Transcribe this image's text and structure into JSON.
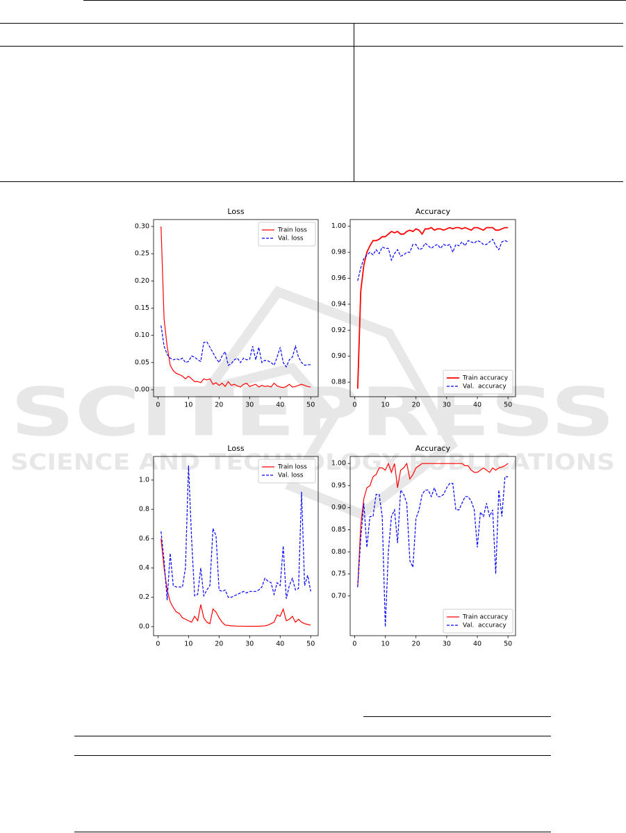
{
  "watermark": {
    "title": "SCITEPRESS",
    "subtitle": "SCIENCE AND TECHNOLOGY PUBLICATIONS"
  },
  "chart_data": [
    {
      "type": "line",
      "title": "Loss",
      "x": [
        1,
        2,
        3,
        4,
        5,
        6,
        7,
        8,
        9,
        10,
        11,
        12,
        13,
        14,
        15,
        16,
        17,
        18,
        19,
        20,
        21,
        22,
        23,
        24,
        25,
        26,
        27,
        28,
        29,
        30,
        31,
        32,
        33,
        34,
        35,
        36,
        37,
        38,
        39,
        40,
        41,
        42,
        43,
        44,
        45,
        46,
        47,
        48,
        49,
        50
      ],
      "xlim": [
        -1.45,
        52.45
      ],
      "xticks": [
        0,
        10,
        20,
        30,
        40,
        50
      ],
      "ylim": [
        -0.0128,
        0.3128
      ],
      "yticks": [
        {
          "value": 0,
          "label": "0.00"
        },
        {
          "value": 0.05,
          "label": "0.05"
        },
        {
          "value": 0.1,
          "label": "0.10"
        },
        {
          "value": 0.15,
          "label": "0.15"
        },
        {
          "value": 0.2,
          "label": "0.20"
        },
        {
          "value": 0.25,
          "label": "0.25"
        },
        {
          "value": 0.3,
          "label": "0.30"
        }
      ],
      "grid": false,
      "legend": "upper-right",
      "series": [
        {
          "name": "Train loss",
          "color": "#ff0000",
          "linestyle": "solid",
          "linewidth": 1.2,
          "values": [
            0.3,
            0.13,
            0.08,
            0.045,
            0.035,
            0.03,
            0.028,
            0.025,
            0.02,
            0.025,
            0.02,
            0.015,
            0.015,
            0.013,
            0.02,
            0.018,
            0.02,
            0.01,
            0.013,
            0.008,
            0.012,
            0.006,
            0.015,
            0.008,
            0.01,
            0.007,
            0.005,
            0.01,
            0.012,
            0.006,
            0.008,
            0.01,
            0.005,
            0.008,
            0.006,
            0.007,
            0.005,
            0.012,
            0.007,
            0.005,
            0.004,
            0.006,
            0.01,
            0.005,
            0.006,
            0.008,
            0.01,
            0.008,
            0.006,
            0.005
          ]
        },
        {
          "name": "Val. loss",
          "color": "#0000ff",
          "linestyle": "dashed",
          "linewidth": 1.2,
          "values": [
            0.118,
            0.08,
            0.065,
            0.058,
            0.055,
            0.057,
            0.055,
            0.058,
            0.05,
            0.052,
            0.062,
            0.06,
            0.055,
            0.052,
            0.087,
            0.088,
            0.078,
            0.068,
            0.058,
            0.05,
            0.062,
            0.07,
            0.045,
            0.048,
            0.055,
            0.058,
            0.05,
            0.058,
            0.055,
            0.056,
            0.08,
            0.055,
            0.078,
            0.05,
            0.054,
            0.053,
            0.05,
            0.045,
            0.06,
            0.078,
            0.05,
            0.042,
            0.055,
            0.06,
            0.08,
            0.06,
            0.05,
            0.045,
            0.046,
            0.046
          ]
        }
      ]
    },
    {
      "type": "line",
      "title": "Accuracy",
      "x": [
        1,
        2,
        3,
        4,
        5,
        6,
        7,
        8,
        9,
        10,
        11,
        12,
        13,
        14,
        15,
        16,
        17,
        18,
        19,
        20,
        21,
        22,
        23,
        24,
        25,
        26,
        27,
        28,
        29,
        30,
        31,
        32,
        33,
        34,
        35,
        36,
        37,
        38,
        39,
        40,
        41,
        42,
        43,
        44,
        45,
        46,
        47,
        48,
        49,
        50
      ],
      "xlim": [
        -1.45,
        52.45
      ],
      "xticks": [
        0,
        10,
        20,
        30,
        40,
        50
      ],
      "ylim": [
        0.8688,
        1.0052
      ],
      "yticks": [
        {
          "value": 0.88,
          "label": "0.88"
        },
        {
          "value": 0.9,
          "label": "0.90"
        },
        {
          "value": 0.92,
          "label": "0.92"
        },
        {
          "value": 0.94,
          "label": "0.94"
        },
        {
          "value": 0.96,
          "label": "0.96"
        },
        {
          "value": 0.98,
          "label": "0.98"
        },
        {
          "value": 1,
          "label": "1.00"
        }
      ],
      "grid": false,
      "legend": "lower-right",
      "series": [
        {
          "name": "Train accuracy",
          "color": "#ff0000",
          "linestyle": "solid",
          "linewidth": 1.8,
          "values": [
            0.875,
            0.95,
            0.97,
            0.98,
            0.985,
            0.989,
            0.989,
            0.99,
            0.992,
            0.992,
            0.994,
            0.996,
            0.995,
            0.996,
            0.994,
            0.994,
            0.996,
            0.997,
            0.996,
            0.998,
            0.997,
            0.994,
            0.998,
            0.998,
            0.999,
            0.997,
            0.998,
            0.998,
            0.997,
            0.998,
            0.999,
            0.998,
            0.999,
            0.999,
            0.998,
            0.999,
            0.998,
            0.997,
            0.999,
            0.999,
            0.998,
            0.997,
            0.999,
            0.999,
            0.999,
            0.997,
            0.997,
            0.998,
            0.999,
            0.999
          ]
        },
        {
          "name": "Val.  accuracy",
          "color": "#0000ff",
          "linestyle": "dashed",
          "linewidth": 1.2,
          "values": [
            0.958,
            0.968,
            0.975,
            0.978,
            0.98,
            0.978,
            0.982,
            0.979,
            0.984,
            0.983,
            0.983,
            0.974,
            0.979,
            0.982,
            0.977,
            0.978,
            0.98,
            0.98,
            0.986,
            0.986,
            0.982,
            0.983,
            0.987,
            0.985,
            0.983,
            0.985,
            0.986,
            0.983,
            0.986,
            0.985,
            0.986,
            0.98,
            0.986,
            0.985,
            0.988,
            0.985,
            0.989,
            0.988,
            0.987,
            0.989,
            0.988,
            0.986,
            0.986,
            0.988,
            0.99,
            0.985,
            0.982,
            0.988,
            0.989,
            0.988
          ]
        }
      ]
    },
    {
      "type": "line",
      "title": "Loss",
      "x": [
        1,
        2,
        3,
        4,
        5,
        6,
        7,
        8,
        9,
        10,
        11,
        12,
        13,
        14,
        15,
        16,
        17,
        18,
        19,
        20,
        21,
        22,
        23,
        24,
        25,
        26,
        27,
        28,
        29,
        30,
        31,
        32,
        33,
        34,
        35,
        36,
        37,
        38,
        39,
        40,
        41,
        42,
        43,
        44,
        45,
        46,
        47,
        48,
        49,
        50
      ],
      "xlim": [
        -1.45,
        52.45
      ],
      "xticks": [
        0,
        10,
        20,
        30,
        40,
        50
      ],
      "ylim": [
        -0.062,
        1.161
      ],
      "yticks": [
        {
          "value": 0,
          "label": "0.0"
        },
        {
          "value": 0.2,
          "label": "0.2"
        },
        {
          "value": 0.4,
          "label": "0.4"
        },
        {
          "value": 0.6,
          "label": "0.6"
        },
        {
          "value": 0.8,
          "label": "0.8"
        },
        {
          "value": 1,
          "label": "1.0"
        }
      ],
      "grid": false,
      "legend": "upper-right",
      "series": [
        {
          "name": "Train loss",
          "color": "#ff0000",
          "linestyle": "solid",
          "linewidth": 1.2,
          "values": [
            0.6,
            0.4,
            0.25,
            0.17,
            0.13,
            0.1,
            0.09,
            0.06,
            0.05,
            0.04,
            0.03,
            0.07,
            0.04,
            0.15,
            0.06,
            0.03,
            0.02,
            0.12,
            0.1,
            0.06,
            0.03,
            0.01,
            0.008,
            0.005,
            0.004,
            0.003,
            0.003,
            0.003,
            0.002,
            0.002,
            0.002,
            0.003,
            0.002,
            0.004,
            0.005,
            0.01,
            0.02,
            0.03,
            0.08,
            0.07,
            0.12,
            0.04,
            0.05,
            0.07,
            0.03,
            0.05,
            0.03,
            0.02,
            0.015,
            0.01
          ]
        },
        {
          "name": "Val. loss",
          "color": "#0000ff",
          "linestyle": "dashed",
          "linewidth": 1.2,
          "values": [
            0.65,
            0.45,
            0.18,
            0.5,
            0.28,
            0.27,
            0.27,
            0.27,
            0.4,
            1.1,
            0.6,
            0.21,
            0.22,
            0.4,
            0.21,
            0.25,
            0.28,
            0.67,
            0.62,
            0.25,
            0.24,
            0.25,
            0.2,
            0.2,
            0.21,
            0.22,
            0.23,
            0.24,
            0.23,
            0.24,
            0.24,
            0.24,
            0.25,
            0.27,
            0.33,
            0.31,
            0.3,
            0.22,
            0.3,
            0.28,
            0.55,
            0.19,
            0.28,
            0.33,
            0.25,
            0.26,
            0.92,
            0.28,
            0.35,
            0.24
          ]
        }
      ]
    },
    {
      "type": "line",
      "title": "Accuracy",
      "x": [
        1,
        2,
        3,
        4,
        5,
        6,
        7,
        8,
        9,
        10,
        11,
        12,
        13,
        14,
        15,
        16,
        17,
        18,
        19,
        20,
        21,
        22,
        23,
        24,
        25,
        26,
        27,
        28,
        29,
        30,
        31,
        32,
        33,
        34,
        35,
        36,
        37,
        38,
        39,
        40,
        41,
        42,
        43,
        44,
        45,
        46,
        47,
        48,
        49,
        50
      ],
      "xlim": [
        -1.45,
        52.45
      ],
      "xticks": [
        0,
        10,
        20,
        30,
        40,
        50
      ],
      "ylim": [
        0.61,
        1.016
      ],
      "yticks": [
        {
          "value": 0.7,
          "label": "0.70"
        },
        {
          "value": 0.75,
          "label": "0.75"
        },
        {
          "value": 0.8,
          "label": "0.80"
        },
        {
          "value": 0.85,
          "label": "0.85"
        },
        {
          "value": 0.9,
          "label": "0.90"
        },
        {
          "value": 0.95,
          "label": "0.95"
        },
        {
          "value": 1,
          "label": "1.00"
        }
      ],
      "grid": false,
      "legend": "lower-right",
      "series": [
        {
          "name": "Train accuracy",
          "color": "#ff0000",
          "linestyle": "solid",
          "linewidth": 1.2,
          "values": [
            0.72,
            0.86,
            0.92,
            0.945,
            0.95,
            0.97,
            0.975,
            0.99,
            0.99,
            0.985,
            1.0,
            0.98,
            1.0,
            0.945,
            0.985,
            0.99,
            1.0,
            0.965,
            0.975,
            0.99,
            0.995,
            1.0,
            1.0,
            1.0,
            1.0,
            1.0,
            1.0,
            1.0,
            1.0,
            1.0,
            1.0,
            1.0,
            1.0,
            1.0,
            1.0,
            0.995,
            0.995,
            0.985,
            0.98,
            0.98,
            0.985,
            0.99,
            0.985,
            0.98,
            0.99,
            0.985,
            0.99,
            0.992,
            0.995,
            1.0
          ]
        },
        {
          "name": "Val.  accuracy",
          "color": "#0000ff",
          "linestyle": "dashed",
          "linewidth": 1.2,
          "values": [
            0.72,
            0.83,
            0.91,
            0.81,
            0.88,
            0.88,
            0.93,
            0.93,
            0.88,
            0.63,
            0.8,
            0.88,
            0.895,
            0.82,
            0.94,
            0.93,
            0.91,
            0.78,
            0.765,
            0.875,
            0.895,
            0.93,
            0.94,
            0.94,
            0.925,
            0.945,
            0.925,
            0.925,
            0.93,
            0.945,
            0.955,
            0.955,
            0.895,
            0.895,
            0.91,
            0.925,
            0.925,
            0.915,
            0.895,
            0.81,
            0.89,
            0.88,
            0.91,
            0.88,
            0.895,
            0.75,
            0.94,
            0.88,
            0.97,
            0.97
          ]
        }
      ]
    }
  ]
}
